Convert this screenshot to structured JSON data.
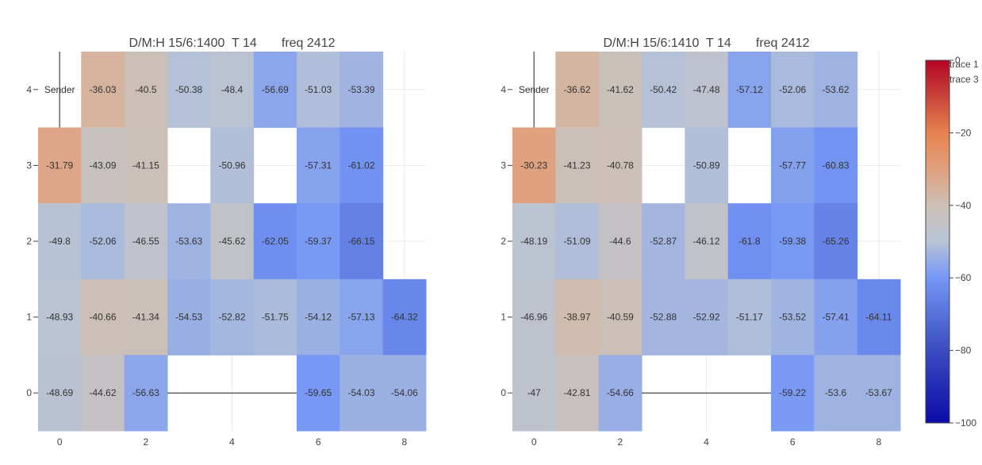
{
  "chart_data": [
    {
      "type": "heatmap",
      "title": "D/M:H 15/6:1400  T 14       freq 2412",
      "x_ticks": [
        0,
        2,
        4,
        6,
        8
      ],
      "y_ticks": [
        0,
        1,
        2,
        3,
        4
      ],
      "xlim": [
        -0.5,
        8.5
      ],
      "ylim": [
        -0.5,
        4.5
      ],
      "annotation": "Sender",
      "cells": [
        {
          "x": 1,
          "y": 4,
          "v": -36.03
        },
        {
          "x": 2,
          "y": 4,
          "v": -40.5
        },
        {
          "x": 3,
          "y": 4,
          "v": -50.38
        },
        {
          "x": 4,
          "y": 4,
          "v": -48.4
        },
        {
          "x": 5,
          "y": 4,
          "v": -56.69
        },
        {
          "x": 6,
          "y": 4,
          "v": -51.03
        },
        {
          "x": 7,
          "y": 4,
          "v": -53.39
        },
        {
          "x": 0,
          "y": 3,
          "v": -31.79
        },
        {
          "x": 1,
          "y": 3,
          "v": -43.09
        },
        {
          "x": 2,
          "y": 3,
          "v": -41.15
        },
        {
          "x": 4,
          "y": 3,
          "v": -50.96
        },
        {
          "x": 6,
          "y": 3,
          "v": -57.31
        },
        {
          "x": 7,
          "y": 3,
          "v": -61.02
        },
        {
          "x": 0,
          "y": 2,
          "v": -49.8
        },
        {
          "x": 1,
          "y": 2,
          "v": -52.06
        },
        {
          "x": 2,
          "y": 2,
          "v": -46.55
        },
        {
          "x": 3,
          "y": 2,
          "v": -53.63
        },
        {
          "x": 4,
          "y": 2,
          "v": -45.62
        },
        {
          "x": 5,
          "y": 2,
          "v": -62.05
        },
        {
          "x": 6,
          "y": 2,
          "v": -59.37
        },
        {
          "x": 7,
          "y": 2,
          "v": -66.15
        },
        {
          "x": 0,
          "y": 1,
          "v": -48.93
        },
        {
          "x": 1,
          "y": 1,
          "v": -40.66
        },
        {
          "x": 2,
          "y": 1,
          "v": -41.34
        },
        {
          "x": 3,
          "y": 1,
          "v": -54.53
        },
        {
          "x": 4,
          "y": 1,
          "v": -52.82
        },
        {
          "x": 5,
          "y": 1,
          "v": -51.75
        },
        {
          "x": 6,
          "y": 1,
          "v": -54.12
        },
        {
          "x": 7,
          "y": 1,
          "v": -57.13
        },
        {
          "x": 8,
          "y": 1,
          "v": -64.32
        },
        {
          "x": 0,
          "y": 0,
          "v": -48.69
        },
        {
          "x": 1,
          "y": 0,
          "v": -44.62
        },
        {
          "x": 2,
          "y": 0,
          "v": -56.63
        },
        {
          "x": 6,
          "y": 0,
          "v": -59.65
        },
        {
          "x": 7,
          "y": 0,
          "v": -54.03
        },
        {
          "x": 8,
          "y": 0,
          "v": -54.06
        }
      ]
    },
    {
      "type": "heatmap",
      "title": "D/M:H 15/6:1410  T 14       freq 2412",
      "x_ticks": [
        0,
        2,
        4,
        6,
        8
      ],
      "y_ticks": [
        0,
        1,
        2,
        3,
        4
      ],
      "xlim": [
        -0.5,
        8.5
      ],
      "ylim": [
        -0.5,
        4.5
      ],
      "annotation": "Sender",
      "cells": [
        {
          "x": 1,
          "y": 4,
          "v": -36.62
        },
        {
          "x": 2,
          "y": 4,
          "v": -41.62
        },
        {
          "x": 3,
          "y": 4,
          "v": -50.42
        },
        {
          "x": 4,
          "y": 4,
          "v": -47.48
        },
        {
          "x": 5,
          "y": 4,
          "v": -57.12
        },
        {
          "x": 6,
          "y": 4,
          "v": -52.06
        },
        {
          "x": 7,
          "y": 4,
          "v": -53.62
        },
        {
          "x": 0,
          "y": 3,
          "v": -30.23
        },
        {
          "x": 1,
          "y": 3,
          "v": -41.23
        },
        {
          "x": 2,
          "y": 3,
          "v": -40.78
        },
        {
          "x": 4,
          "y": 3,
          "v": -50.89
        },
        {
          "x": 6,
          "y": 3,
          "v": -57.77
        },
        {
          "x": 7,
          "y": 3,
          "v": -60.83
        },
        {
          "x": 0,
          "y": 2,
          "v": -48.19
        },
        {
          "x": 1,
          "y": 2,
          "v": -51.09
        },
        {
          "x": 2,
          "y": 2,
          "v": -44.6
        },
        {
          "x": 3,
          "y": 2,
          "v": -52.87
        },
        {
          "x": 4,
          "y": 2,
          "v": -46.12
        },
        {
          "x": 5,
          "y": 2,
          "v": -61.8
        },
        {
          "x": 6,
          "y": 2,
          "v": -59.38
        },
        {
          "x": 7,
          "y": 2,
          "v": -65.26
        },
        {
          "x": 0,
          "y": 1,
          "v": -46.96
        },
        {
          "x": 1,
          "y": 1,
          "v": -38.97
        },
        {
          "x": 2,
          "y": 1,
          "v": -40.59
        },
        {
          "x": 3,
          "y": 1,
          "v": -52.88
        },
        {
          "x": 4,
          "y": 1,
          "v": -52.92
        },
        {
          "x": 5,
          "y": 1,
          "v": -51.17
        },
        {
          "x": 6,
          "y": 1,
          "v": -53.52
        },
        {
          "x": 7,
          "y": 1,
          "v": -57.41
        },
        {
          "x": 8,
          "y": 1,
          "v": -64.11
        },
        {
          "x": 0,
          "y": 0,
          "v": -47.0
        },
        {
          "x": 1,
          "y": 0,
          "v": -42.81
        },
        {
          "x": 2,
          "y": 0,
          "v": -54.66
        },
        {
          "x": 6,
          "y": 0,
          "v": -59.22
        },
        {
          "x": 7,
          "y": 0,
          "v": -53.6
        },
        {
          "x": 8,
          "y": 0,
          "v": -53.67
        }
      ]
    }
  ],
  "colorbar": {
    "range": [
      -100,
      0
    ],
    "ticks": [
      0,
      -20,
      -40,
      -60,
      -80,
      -100
    ],
    "colorscale": [
      [
        0.0,
        "#0b0ba8"
      ],
      [
        0.2,
        "#3b4cc0"
      ],
      [
        0.4,
        "#7597f6"
      ],
      [
        0.5,
        "#b7c3d6"
      ],
      [
        0.6,
        "#cdbfb5"
      ],
      [
        0.7,
        "#e0a07e"
      ],
      [
        0.8,
        "#e6834f"
      ],
      [
        0.9,
        "#c8443a"
      ],
      [
        1.0,
        "#b40426"
      ]
    ]
  },
  "legend": {
    "placement": "top-right",
    "entries": [
      "trace 1",
      "trace 3"
    ]
  }
}
